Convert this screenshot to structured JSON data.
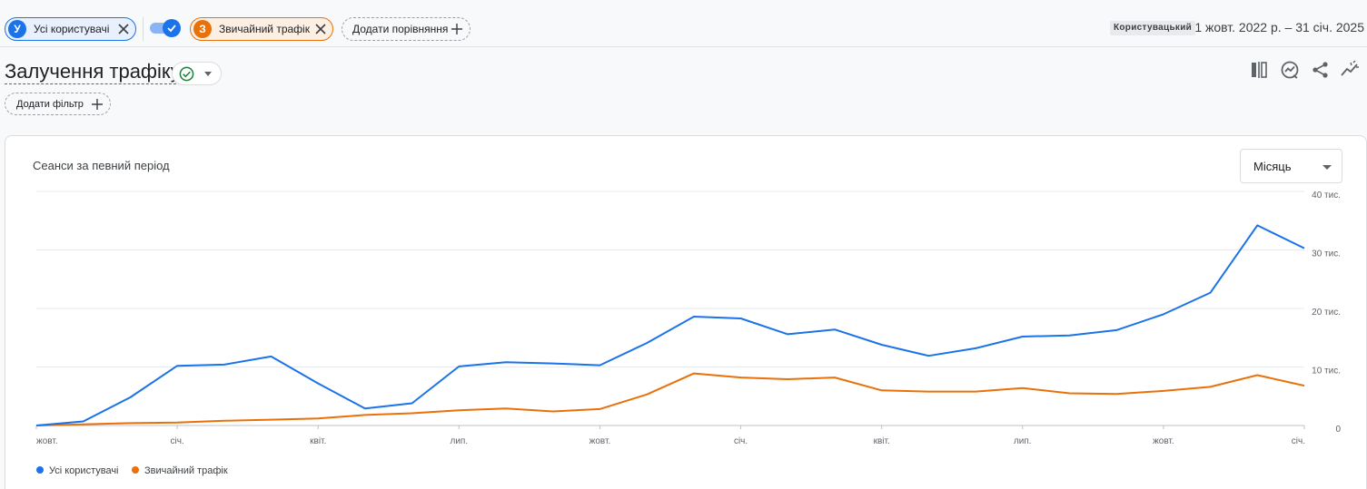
{
  "comparisons": {
    "chip1": {
      "badge": "У",
      "label": "Усі користувачі",
      "color": "#1a73e8"
    },
    "chip2": {
      "badge": "З",
      "label": "Звичайний трафік",
      "color": "#e8710a"
    },
    "add_label": "Додати порівняння"
  },
  "date": {
    "badge": "Користувацький",
    "range": "1 жовт. 2022 р. – 31 січ. 2025"
  },
  "report": {
    "title": "Залучення трафіку",
    "add_filter_label": "Додати фільтр"
  },
  "toolbar_icons": [
    "compare-columns-icon",
    "insights-icon",
    "share-icon",
    "trend-icon"
  ],
  "card": {
    "title": "Сеанси за певний період",
    "period_value": "Місяць"
  },
  "chart_data": {
    "type": "line",
    "x_tick_labels": [
      "жовт.",
      "січ.",
      "квіт.",
      "лип.",
      "жовт.",
      "січ.",
      "квіт.",
      "лип.",
      "жовт.",
      "січ."
    ],
    "y_tick_labels": [
      "0",
      "10 тис.",
      "20 тис.",
      "30 тис.",
      "40 тис."
    ],
    "ylim": [
      0,
      40000
    ],
    "grid": true,
    "legend_position": "bottom-left",
    "series": [
      {
        "name": "Усі користувачі",
        "color": "#1a73e8",
        "values": [
          0,
          700,
          4800,
          10200,
          10400,
          11800,
          7200,
          2900,
          3800,
          10100,
          10800,
          10600,
          10300,
          14100,
          18600,
          18300,
          15600,
          16400,
          13800,
          11900,
          13200,
          15200,
          15400,
          16300,
          19000,
          22700,
          34200,
          30300
        ]
      },
      {
        "name": "Звичайний трафік",
        "color": "#e8710a",
        "values": [
          0,
          200,
          400,
          500,
          800,
          1000,
          1200,
          1800,
          2100,
          2600,
          2900,
          2400,
          2800,
          5300,
          8900,
          8200,
          7900,
          8200,
          6000,
          5800,
          5800,
          6400,
          5500,
          5400,
          5900,
          6600,
          8600,
          6800
        ]
      }
    ]
  }
}
